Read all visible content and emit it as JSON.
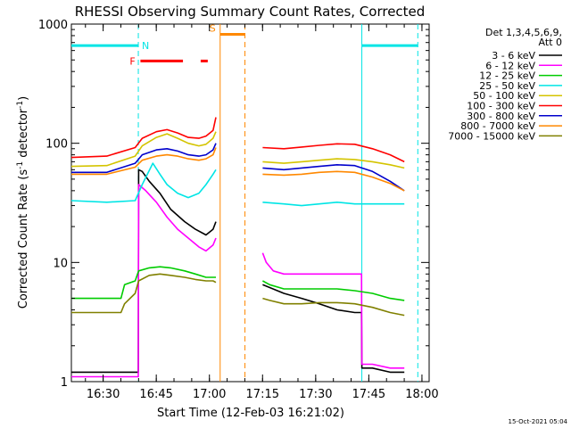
{
  "chart_data": {
    "type": "line",
    "title": "RHESSI Observing Summary Count Rates, Corrected",
    "xlabel": "Start Time (12-Feb-03 16:21:02)",
    "ylabel_parts": [
      "Corrected Count Rate (s",
      "-1",
      " detector",
      "-1",
      ")"
    ],
    "y_scale": "log",
    "ylim": [
      1,
      1000
    ],
    "y_ticks": [
      {
        "value": 1,
        "label": "1"
      },
      {
        "value": 10,
        "label": "10"
      },
      {
        "value": 100,
        "label": "100"
      },
      {
        "value": 1000,
        "label": "1000"
      }
    ],
    "x_unit": "minutes after 16:21:02",
    "xlim": [
      0,
      101
    ],
    "x_ticks": [
      {
        "value": 8.97,
        "label": "16:30"
      },
      {
        "value": 23.97,
        "label": "16:45"
      },
      {
        "value": 38.97,
        "label": "17:00"
      },
      {
        "value": 53.97,
        "label": "17:15"
      },
      {
        "value": 68.97,
        "label": "17:30"
      },
      {
        "value": 83.97,
        "label": "17:45"
      },
      {
        "value": 98.97,
        "label": "18:00"
      }
    ],
    "legend": {
      "position": "right",
      "header": [
        "Det 1,3,4,5,6,9,",
        "Att 0"
      ]
    },
    "series": [
      {
        "name": "3 - 6 keV",
        "color": "#000000",
        "x": [
          0,
          18.9,
          19,
          20,
          22,
          25,
          28,
          32,
          35,
          38,
          40,
          40.8,
          41,
          53,
          54,
          60,
          65,
          70,
          75,
          80,
          81.9,
          82,
          85,
          90,
          94
        ],
        "y": [
          1.2,
          1.2,
          60,
          58,
          48,
          38,
          28,
          22,
          19,
          17,
          19,
          22,
          null,
          null,
          6.5,
          5.5,
          5,
          4.5,
          4,
          3.8,
          3.8,
          1.3,
          1.3,
          1.2,
          1.2
        ]
      },
      {
        "name": "6 - 12 keV",
        "color": "#ff00ff",
        "x": [
          0,
          18.9,
          19,
          21,
          24,
          27,
          30,
          33,
          36,
          38,
          40,
          40.8,
          41,
          53,
          54,
          55,
          57,
          60,
          65,
          70,
          75,
          80,
          81.9,
          82,
          85,
          90,
          94
        ],
        "y": [
          1.1,
          1.1,
          45,
          40,
          32,
          24,
          19,
          16,
          13.5,
          12.5,
          14,
          16,
          null,
          null,
          12,
          10,
          8.5,
          8,
          8,
          8,
          8,
          8,
          8,
          1.4,
          1.4,
          1.3,
          1.3
        ]
      },
      {
        "name": "12 - 25 keV",
        "color": "#00cc00",
        "x": [
          0,
          14,
          15,
          18,
          19,
          22,
          25,
          28,
          32,
          35,
          38,
          40,
          40.8,
          41,
          53,
          54,
          56,
          60,
          65,
          70,
          75,
          80,
          85,
          90,
          94
        ],
        "y": [
          5,
          5,
          6.5,
          7,
          8.5,
          9,
          9.2,
          9,
          8.5,
          8,
          7.5,
          7.5,
          7.5,
          null,
          null,
          7,
          6.5,
          6,
          6,
          6,
          6,
          5.8,
          5.5,
          5,
          4.8
        ]
      },
      {
        "name": "25 - 50 keV",
        "color": "#00e5e5",
        "x": [
          0,
          10,
          18,
          20,
          23,
          25,
          27,
          30,
          33,
          36,
          38,
          40,
          40.8,
          41,
          53,
          54,
          60,
          65,
          70,
          75,
          80,
          85,
          90,
          94
        ],
        "y": [
          33,
          32,
          33,
          45,
          68,
          55,
          45,
          38,
          35,
          38,
          45,
          55,
          60,
          null,
          null,
          32,
          31,
          30,
          31,
          32,
          31,
          31,
          31,
          31
        ]
      },
      {
        "name": "50 - 100 keV",
        "color": "#d4c400",
        "x": [
          0,
          10,
          18,
          20,
          24,
          27,
          30,
          33,
          36,
          38,
          40,
          40.8,
          41,
          53,
          54,
          60,
          65,
          70,
          75,
          80,
          85,
          90,
          94
        ],
        "y": [
          64,
          65,
          78,
          95,
          112,
          120,
          110,
          100,
          95,
          98,
          110,
          125,
          null,
          null,
          70,
          68,
          70,
          72,
          74,
          73,
          70,
          66,
          62
        ]
      },
      {
        "name": "100 - 300 keV",
        "color": "#ff0000",
        "x": [
          0,
          10,
          18,
          20,
          24,
          27,
          30,
          33,
          36,
          38,
          40,
          40.8,
          41,
          53,
          54,
          60,
          65,
          70,
          75,
          80,
          85,
          90,
          94
        ],
        "y": [
          76,
          78,
          92,
          110,
          125,
          130,
          122,
          112,
          110,
          115,
          128,
          165,
          null,
          null,
          92,
          90,
          93,
          96,
          99,
          98,
          90,
          80,
          70
        ]
      },
      {
        "name": "300 - 800 keV",
        "color": "#0000cc",
        "x": [
          0,
          10,
          18,
          20,
          24,
          27,
          30,
          33,
          36,
          38,
          40,
          40.8,
          41,
          53,
          54,
          60,
          65,
          70,
          75,
          80,
          85,
          90,
          94
        ],
        "y": [
          57,
          57,
          68,
          80,
          88,
          90,
          86,
          80,
          78,
          80,
          88,
          100,
          null,
          null,
          62,
          60,
          62,
          64,
          66,
          65,
          58,
          48,
          40
        ]
      },
      {
        "name": "800 - 7000 keV",
        "color": "#ff8800",
        "x": [
          0,
          10,
          18,
          20,
          24,
          27,
          30,
          33,
          36,
          38,
          40,
          40.8,
          41,
          53,
          54,
          60,
          65,
          70,
          75,
          80,
          85,
          90,
          94
        ],
        "y": [
          55,
          55,
          63,
          72,
          78,
          80,
          78,
          74,
          72,
          74,
          80,
          92,
          null,
          null,
          55,
          54,
          55,
          57,
          58,
          57,
          52,
          46,
          40
        ]
      },
      {
        "name": "7000 - 15000 keV",
        "color": "#808000",
        "x": [
          0,
          14,
          15,
          18,
          19,
          22,
          25,
          28,
          32,
          35,
          38,
          40,
          40.8,
          41,
          53,
          54,
          56,
          60,
          65,
          70,
          75,
          80,
          85,
          90,
          94
        ],
        "y": [
          3.8,
          3.8,
          4.5,
          5.5,
          7,
          7.8,
          8,
          7.8,
          7.5,
          7.2,
          7,
          7,
          6.8,
          null,
          null,
          5,
          4.8,
          4.5,
          4.5,
          4.6,
          4.6,
          4.5,
          4.2,
          3.8,
          3.6
        ]
      }
    ],
    "intervals": [
      {
        "label": "N",
        "color": "#00e5e5",
        "start": -1,
        "end": 18.9,
        "level": 660
      },
      {
        "label": "",
        "color": "#00e5e5",
        "start": 82,
        "end": 97.8,
        "level": 660
      }
    ],
    "flare_flags": {
      "label": "F",
      "color": "#ff0000",
      "level": 490,
      "segments": [
        [
          19.5,
          31.5
        ],
        [
          36.5,
          38.5
        ]
      ]
    },
    "saa_flag": {
      "label": "S",
      "color": "#ff8800",
      "start": 42,
      "end": 49,
      "level": 820
    },
    "vlines": [
      {
        "x": 18.9,
        "color": "#00e5e5",
        "style": "dashed"
      },
      {
        "x": 82,
        "color": "#00e5e5",
        "style": "solid"
      },
      {
        "x": 97.8,
        "color": "#00e5e5",
        "style": "dashed"
      },
      {
        "x": 42,
        "color": "#ff8800",
        "style": "solid"
      },
      {
        "x": 49,
        "color": "#ff8800",
        "style": "dashed"
      }
    ]
  },
  "footer": {
    "timestamp": "15-Oct-2021 05:04"
  }
}
